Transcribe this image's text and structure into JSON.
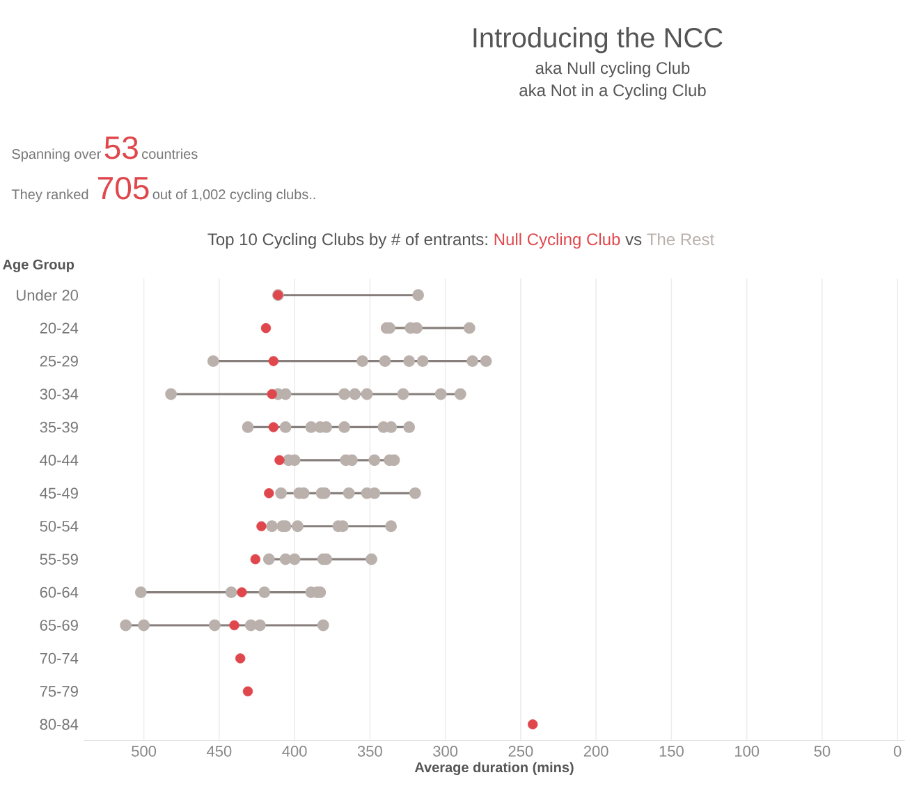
{
  "chart_data": {
    "type": "scatter",
    "orientation": "horizontal",
    "title": "Introducing the NCC",
    "subtitle": "aka Null cycling Club",
    "annotations": [
      "aka Not in a Cycling Club",
      "Spanning over",
      "53",
      "countries",
      "They ranked",
      "705",
      "out of 1,002 cycling clubs..",
      "vs"
    ],
    "legend_title": "Top 10 Cycling Clubs by # of entrants:",
    "legend": "top",
    "ylabel": "Age Group",
    "xlabel": "Average duration (mins)",
    "categories": [
      "Under 20",
      "20-24",
      "25-29",
      "30-34",
      "35-39",
      "40-44",
      "45-49",
      "50-54",
      "55-59",
      "60-64",
      "65-69",
      "70-74",
      "75-79",
      "80-84"
    ],
    "xlim": [
      540,
      -5
    ],
    "xticks": [
      500,
      450,
      400,
      350,
      300,
      250,
      200,
      150,
      100,
      50,
      0
    ],
    "grid": "x",
    "marker": "circle",
    "series": [
      {
        "name": "Null Cycling Club",
        "color": "#e0474c",
        "values": [
          411,
          419,
          414,
          415,
          414,
          410,
          417,
          422,
          426,
          435,
          440,
          436,
          431,
          242
        ]
      },
      {
        "name": "The Rest",
        "type": "line",
        "color": "#bab0ac",
        "x": [
          "Under 20",
          "Under 20",
          "20-24",
          "20-24",
          "20-24",
          "20-24",
          "20-24",
          "25-29",
          "25-29",
          "25-29",
          "25-29",
          "25-29",
          "25-29",
          "25-29",
          "30-34",
          "30-34",
          "30-34",
          "30-34",
          "30-34",
          "30-34",
          "30-34",
          "30-34",
          "30-34",
          "35-39",
          "35-39",
          "35-39",
          "35-39",
          "35-39",
          "35-39",
          "35-39",
          "35-39",
          "35-39",
          "40-44",
          "40-44",
          "40-44",
          "40-44",
          "40-44",
          "40-44",
          "40-44",
          "45-49",
          "45-49",
          "45-49",
          "45-49",
          "45-49",
          "45-49",
          "45-49",
          "45-49",
          "45-49",
          "50-54",
          "50-54",
          "50-54",
          "50-54",
          "50-54",
          "50-54",
          "50-54",
          "55-59",
          "55-59",
          "55-59",
          "55-59",
          "55-59",
          "55-59",
          "60-64",
          "60-64",
          "60-64",
          "60-64",
          "60-64",
          "60-64",
          "65-69",
          "65-69",
          "65-69",
          "65-69",
          "65-69",
          "65-69"
        ],
        "values": [
          411,
          318,
          339,
          337,
          323,
          319,
          284,
          454,
          355,
          340,
          324,
          315,
          282,
          273,
          482,
          411,
          406,
          367,
          360,
          352,
          328,
          303,
          290,
          431,
          406,
          389,
          383,
          379,
          367,
          341,
          336,
          324,
          404,
          400,
          366,
          362,
          347,
          337,
          334,
          409,
          397,
          394,
          382,
          380,
          364,
          352,
          347,
          320,
          415,
          408,
          406,
          398,
          371,
          368,
          336,
          417,
          406,
          400,
          381,
          379,
          349,
          502,
          442,
          420,
          389,
          385,
          383,
          512,
          500,
          453,
          429,
          423,
          381
        ]
      }
    ]
  }
}
